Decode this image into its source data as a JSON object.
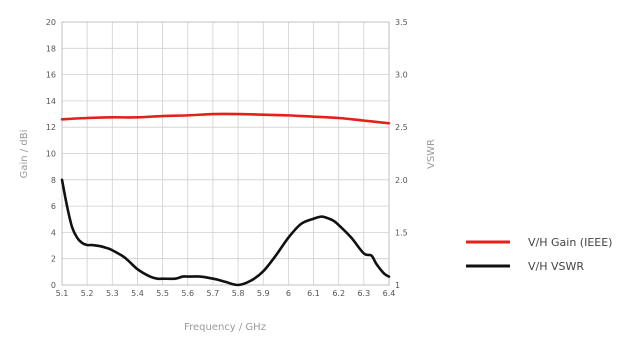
{
  "chart_data": {
    "type": "line",
    "title": "",
    "xlabel": "Frequency / GHz",
    "ylabel": "Gain / dBi",
    "y2label": "VSWR",
    "xlim": [
      5.1,
      6.4
    ],
    "ylim": [
      0,
      20
    ],
    "y2lim": [
      1,
      3.5
    ],
    "x_ticks": [
      "5.1",
      "5.2",
      "5.3",
      "5.4",
      "5.5",
      "5.6",
      "5.7",
      "5.8",
      "5.9",
      "6",
      "6.1",
      "6.2",
      "6.3",
      "6.4"
    ],
    "y_ticks": [
      "0",
      "2",
      "4",
      "6",
      "8",
      "10",
      "12",
      "14",
      "16",
      "18",
      "20"
    ],
    "y2_ticks": [
      "1",
      "1.5",
      "2.0",
      "2.5",
      "3.0",
      "3.5"
    ],
    "grid": true,
    "legend_position": "right",
    "series": [
      {
        "name": "V/H Gain (IEEE)",
        "axis": "left",
        "color": "#e32119",
        "x": [
          5.1,
          5.2,
          5.3,
          5.4,
          5.5,
          5.6,
          5.7,
          5.8,
          5.9,
          6.0,
          6.1,
          6.2,
          6.3,
          6.4
        ],
        "y": [
          12.6,
          12.7,
          12.75,
          12.75,
          12.85,
          12.9,
          13.0,
          13.0,
          12.95,
          12.9,
          12.8,
          12.7,
          12.5,
          12.3
        ]
      },
      {
        "name": "V/H VSWR",
        "axis": "right",
        "color": "#111111",
        "x": [
          5.1,
          5.12,
          5.14,
          5.16,
          5.18,
          5.2,
          5.22,
          5.25,
          5.28,
          5.3,
          5.35,
          5.4,
          5.45,
          5.48,
          5.5,
          5.55,
          5.58,
          5.6,
          5.65,
          5.7,
          5.72,
          5.75,
          5.8,
          5.85,
          5.9,
          5.95,
          6.0,
          6.05,
          6.1,
          6.13,
          6.15,
          6.18,
          6.2,
          6.25,
          6.3,
          6.33,
          6.35,
          6.38,
          6.4
        ],
        "y": [
          2.0,
          1.75,
          1.55,
          1.45,
          1.4,
          1.38,
          1.38,
          1.37,
          1.35,
          1.33,
          1.26,
          1.15,
          1.08,
          1.06,
          1.06,
          1.06,
          1.08,
          1.08,
          1.08,
          1.06,
          1.05,
          1.03,
          1.0,
          1.04,
          1.13,
          1.28,
          1.45,
          1.58,
          1.63,
          1.65,
          1.64,
          1.61,
          1.57,
          1.45,
          1.3,
          1.28,
          1.2,
          1.11,
          1.08
        ]
      }
    ]
  }
}
